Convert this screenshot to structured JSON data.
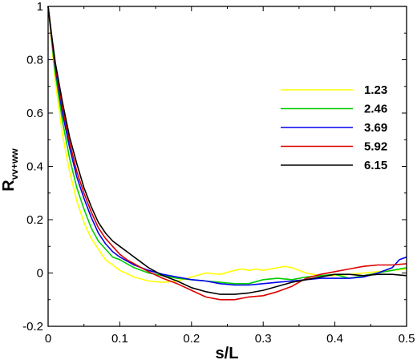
{
  "chart_data": {
    "type": "line",
    "xlabel": "s/L",
    "ylabel": "R",
    "ylabel_sub": "vv+ww",
    "xlim": [
      0,
      0.5
    ],
    "ylim": [
      -0.2,
      1
    ],
    "xticks": [
      "0",
      "0.1",
      "0.2",
      "0.3",
      "0.4",
      "0.5"
    ],
    "yticks": [
      "-0.2",
      "0",
      "0.2",
      "0.4",
      "0.6",
      "0.8",
      "1"
    ],
    "grid": false,
    "legend_position": "right",
    "series": [
      {
        "name": "1.23",
        "color": "#ffff00",
        "x": [
          0,
          0.005,
          0.01,
          0.02,
          0.03,
          0.04,
          0.05,
          0.06,
          0.07,
          0.08,
          0.09,
          0.1,
          0.12,
          0.14,
          0.16,
          0.18,
          0.2,
          0.22,
          0.24,
          0.26,
          0.27,
          0.28,
          0.29,
          0.3,
          0.32,
          0.33,
          0.34,
          0.36,
          0.38,
          0.4,
          0.42,
          0.44,
          0.46,
          0.48,
          0.5
        ],
        "y": [
          1.0,
          0.86,
          0.72,
          0.52,
          0.38,
          0.27,
          0.19,
          0.13,
          0.09,
          0.05,
          0.03,
          0.01,
          -0.015,
          -0.03,
          -0.035,
          -0.03,
          -0.015,
          0.0,
          -0.005,
          0.01,
          0.015,
          0.01,
          0.015,
          0.01,
          0.02,
          0.025,
          0.02,
          0.0,
          -0.01,
          -0.01,
          -0.005,
          0.0,
          0.005,
          0.01,
          0.015
        ]
      },
      {
        "name": "2.46",
        "color": "#00cc00",
        "x": [
          0,
          0.005,
          0.01,
          0.02,
          0.03,
          0.04,
          0.05,
          0.06,
          0.07,
          0.08,
          0.09,
          0.1,
          0.11,
          0.12,
          0.14,
          0.16,
          0.18,
          0.2,
          0.22,
          0.24,
          0.26,
          0.28,
          0.3,
          0.32,
          0.34,
          0.36,
          0.38,
          0.4,
          0.42,
          0.44,
          0.46,
          0.48,
          0.5
        ],
        "y": [
          1.0,
          0.87,
          0.75,
          0.57,
          0.43,
          0.32,
          0.24,
          0.17,
          0.12,
          0.09,
          0.06,
          0.05,
          0.035,
          0.02,
          0.0,
          -0.01,
          -0.02,
          -0.025,
          -0.03,
          -0.035,
          -0.04,
          -0.04,
          -0.025,
          -0.02,
          -0.025,
          -0.015,
          -0.01,
          -0.005,
          -0.02,
          -0.01,
          0.0,
          0.01,
          0.02
        ]
      },
      {
        "name": "3.69",
        "color": "#0000ee",
        "x": [
          0,
          0.005,
          0.01,
          0.02,
          0.03,
          0.04,
          0.05,
          0.06,
          0.07,
          0.08,
          0.09,
          0.1,
          0.11,
          0.12,
          0.14,
          0.16,
          0.18,
          0.2,
          0.22,
          0.24,
          0.26,
          0.28,
          0.3,
          0.32,
          0.34,
          0.36,
          0.38,
          0.4,
          0.42,
          0.44,
          0.46,
          0.48,
          0.49,
          0.5
        ],
        "y": [
          1.0,
          0.88,
          0.77,
          0.6,
          0.47,
          0.36,
          0.28,
          0.21,
          0.15,
          0.11,
          0.08,
          0.06,
          0.045,
          0.03,
          0.01,
          -0.005,
          -0.015,
          -0.025,
          -0.03,
          -0.04,
          -0.045,
          -0.045,
          -0.04,
          -0.035,
          -0.03,
          -0.025,
          -0.02,
          -0.02,
          -0.02,
          -0.015,
          0.0,
          0.02,
          0.05,
          0.06
        ]
      },
      {
        "name": "5.92",
        "color": "#dd0000",
        "x": [
          0,
          0.005,
          0.01,
          0.02,
          0.03,
          0.04,
          0.05,
          0.06,
          0.07,
          0.08,
          0.09,
          0.1,
          0.11,
          0.12,
          0.13,
          0.14,
          0.16,
          0.18,
          0.2,
          0.22,
          0.24,
          0.26,
          0.28,
          0.3,
          0.32,
          0.34,
          0.36,
          0.38,
          0.4,
          0.42,
          0.44,
          0.46,
          0.48,
          0.5
        ],
        "y": [
          1.0,
          0.88,
          0.78,
          0.62,
          0.49,
          0.38,
          0.3,
          0.23,
          0.17,
          0.13,
          0.1,
          0.07,
          0.05,
          0.035,
          0.02,
          0.005,
          -0.02,
          -0.04,
          -0.065,
          -0.09,
          -0.1,
          -0.1,
          -0.09,
          -0.085,
          -0.07,
          -0.05,
          -0.02,
          -0.005,
          0.005,
          0.015,
          0.025,
          0.03,
          0.03,
          0.035
        ]
      },
      {
        "name": "6.15",
        "color": "#000000",
        "x": [
          0,
          0.005,
          0.01,
          0.02,
          0.03,
          0.04,
          0.05,
          0.06,
          0.07,
          0.08,
          0.09,
          0.1,
          0.11,
          0.12,
          0.13,
          0.14,
          0.15,
          0.16,
          0.18,
          0.2,
          0.22,
          0.24,
          0.26,
          0.28,
          0.3,
          0.32,
          0.34,
          0.36,
          0.38,
          0.4,
          0.42,
          0.44,
          0.46,
          0.48,
          0.5
        ],
        "y": [
          1.0,
          0.89,
          0.79,
          0.64,
          0.51,
          0.41,
          0.32,
          0.25,
          0.19,
          0.15,
          0.12,
          0.1,
          0.08,
          0.06,
          0.04,
          0.02,
          0.005,
          -0.01,
          -0.03,
          -0.055,
          -0.07,
          -0.08,
          -0.08,
          -0.075,
          -0.065,
          -0.05,
          -0.035,
          -0.025,
          -0.015,
          -0.005,
          -0.005,
          -0.01,
          -0.005,
          -0.005,
          -0.01
        ]
      }
    ]
  }
}
